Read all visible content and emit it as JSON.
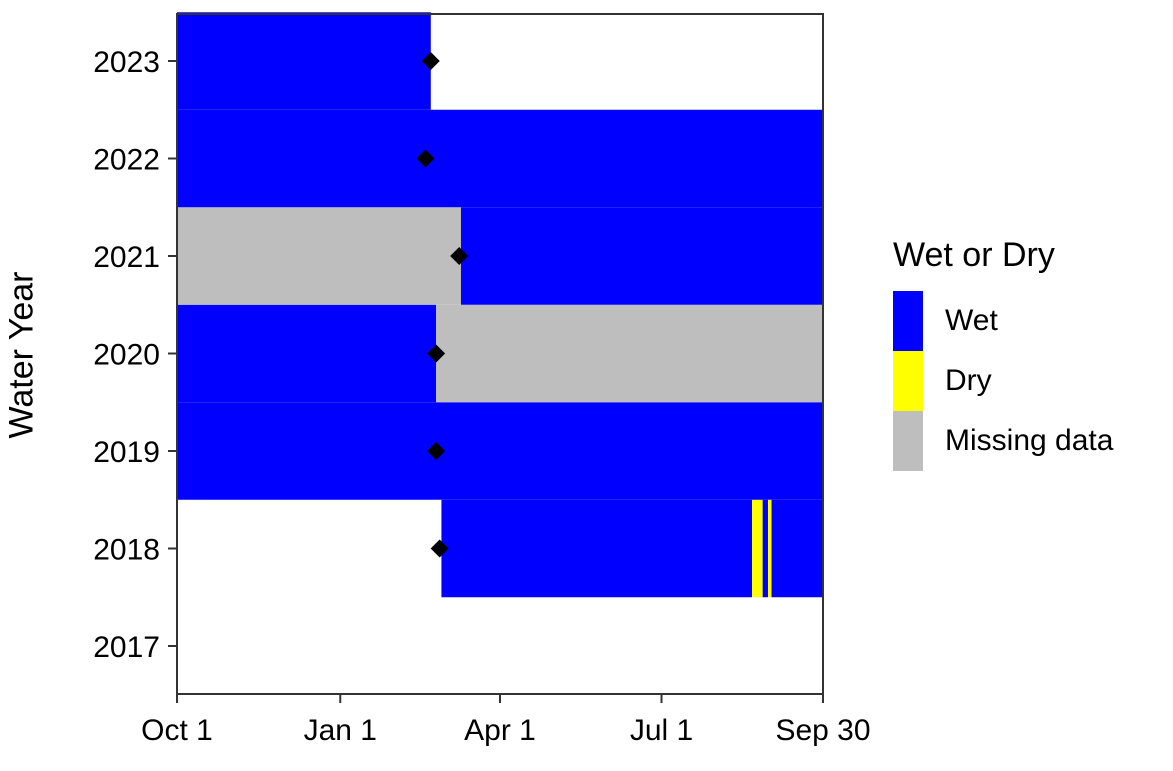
{
  "chart_data": {
    "type": "heatmap",
    "title": "",
    "xlabel": "",
    "ylabel": "Water Year",
    "x_ticks": [
      {
        "label": "Oct 1",
        "day": 0
      },
      {
        "label": "Jan 1",
        "day": 92
      },
      {
        "label": "Apr 1",
        "day": 182
      },
      {
        "label": "Jul 1",
        "day": 273
      },
      {
        "label": "Sep 30",
        "day": 364
      }
    ],
    "x_range_days": [
      0,
      364
    ],
    "y_categories": [
      "2017",
      "2018",
      "2019",
      "2020",
      "2021",
      "2022",
      "2023"
    ],
    "legend": {
      "title": "Wet or Dry",
      "position": "right",
      "entries": [
        {
          "label": "Wet",
          "color": "#0000ff"
        },
        {
          "label": "Dry",
          "color": "#ffff00"
        },
        {
          "label": "Missing data",
          "color": "#bebebe"
        }
      ]
    },
    "colors": {
      "Wet": "#0000ff",
      "Dry": "#ffff00",
      "Missing data": "#bebebe"
    },
    "segments": [
      {
        "year": "2018",
        "state": "Wet",
        "start": 149,
        "end": 324
      },
      {
        "year": "2018",
        "state": "Dry",
        "start": 324,
        "end": 330
      },
      {
        "year": "2018",
        "state": "Wet",
        "start": 330,
        "end": 333
      },
      {
        "year": "2018",
        "state": "Dry",
        "start": 333,
        "end": 335
      },
      {
        "year": "2018",
        "state": "Wet",
        "start": 335,
        "end": 365
      },
      {
        "year": "2019",
        "state": "Wet",
        "start": 0,
        "end": 365
      },
      {
        "year": "2020",
        "state": "Wet",
        "start": 0,
        "end": 146
      },
      {
        "year": "2020",
        "state": "Missing data",
        "start": 146,
        "end": 365
      },
      {
        "year": "2021",
        "state": "Missing data",
        "start": 0,
        "end": 160
      },
      {
        "year": "2021",
        "state": "Wet",
        "start": 160,
        "end": 365
      },
      {
        "year": "2022",
        "state": "Wet",
        "start": 0,
        "end": 365
      },
      {
        "year": "2023",
        "state": "Wet",
        "start": 0,
        "end": 143
      }
    ],
    "markers": [
      {
        "year": "2018",
        "day": 148
      },
      {
        "year": "2019",
        "day": 146
      },
      {
        "year": "2020",
        "day": 146
      },
      {
        "year": "2021",
        "day": 159
      },
      {
        "year": "2022",
        "day": 140
      },
      {
        "year": "2023",
        "day": 143
      }
    ],
    "grid": false
  }
}
